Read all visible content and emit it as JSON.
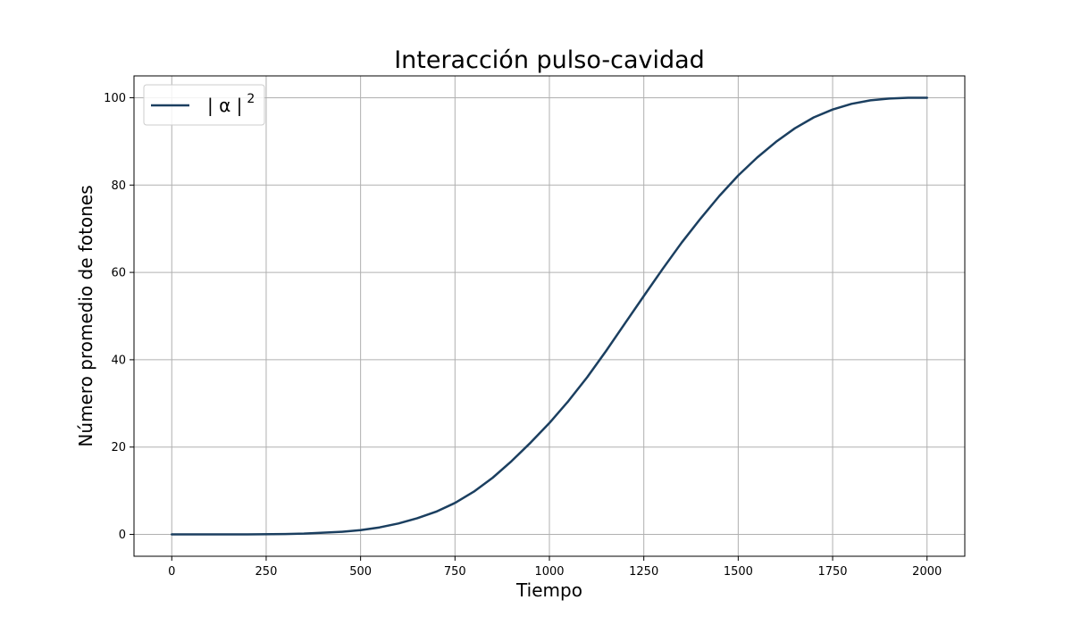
{
  "chart_data": {
    "type": "line",
    "title": "Interacción pulso-cavidad",
    "xlabel": "Tiempo",
    "ylabel": "Número promedio de fotones",
    "xlim": [
      -100,
      2100
    ],
    "ylim": [
      -5,
      105
    ],
    "xticks": [
      0,
      250,
      500,
      750,
      1000,
      1250,
      1500,
      1750,
      2000
    ],
    "yticks": [
      0,
      20,
      40,
      60,
      80,
      100
    ],
    "grid": true,
    "legend_position": "upper-left",
    "series": [
      {
        "name": "| α | 2",
        "color": "#1b3f60",
        "x": [
          0,
          100,
          200,
          300,
          350,
          400,
          450,
          500,
          550,
          600,
          650,
          700,
          750,
          800,
          850,
          900,
          950,
          1000,
          1050,
          1100,
          1150,
          1200,
          1250,
          1300,
          1350,
          1400,
          1450,
          1500,
          1550,
          1600,
          1650,
          1700,
          1750,
          1800,
          1850,
          1900,
          1950,
          2000
        ],
        "y": [
          0,
          0,
          0,
          0.1,
          0.2,
          0.4,
          0.6,
          1.0,
          1.6,
          2.5,
          3.7,
          5.2,
          7.2,
          9.8,
          13.0,
          16.8,
          21.0,
          25.5,
          30.5,
          36.0,
          42.0,
          48.3,
          54.6,
          60.8,
          66.8,
          72.3,
          77.5,
          82.2,
          86.3,
          89.9,
          93.0,
          95.5,
          97.3,
          98.6,
          99.4,
          99.8,
          100,
          100
        ]
      }
    ]
  }
}
